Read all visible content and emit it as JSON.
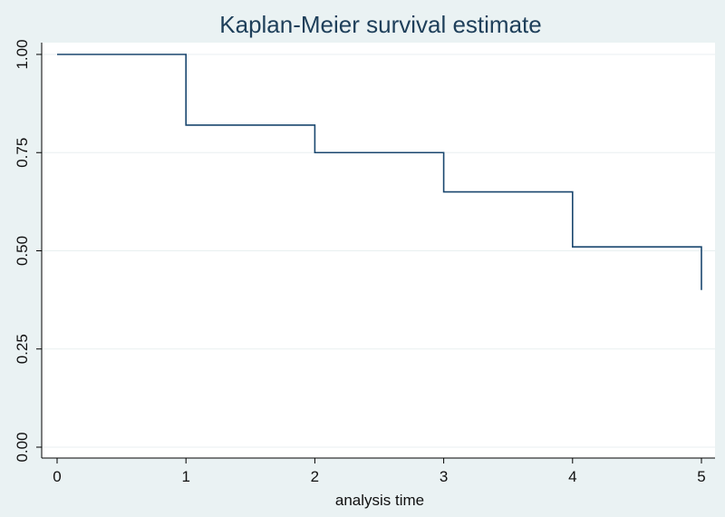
{
  "chart_data": {
    "type": "line",
    "step": true,
    "title": "Kaplan-Meier survival estimate",
    "xlabel": "analysis time",
    "ylabel": "",
    "xlim": [
      0,
      5
    ],
    "ylim": [
      0,
      1
    ],
    "x_ticks": [
      0,
      1,
      2,
      3,
      4,
      5
    ],
    "x_tick_labels": [
      "0",
      "1",
      "2",
      "3",
      "4",
      "5"
    ],
    "y_ticks": [
      0,
      0.25,
      0.5,
      0.75,
      1
    ],
    "y_tick_labels": [
      "0.00",
      "0.25",
      "0.50",
      "0.75",
      "1.00"
    ],
    "grid": true,
    "series": [
      {
        "x": [
          0,
          1,
          2,
          3,
          4,
          5
        ],
        "y": [
          1.0,
          0.82,
          0.75,
          0.65,
          0.51,
          0.4
        ]
      }
    ],
    "colors": {
      "background": "#eaf2f3",
      "plot_area": "#ffffff",
      "line": "#1a476f",
      "grid": "#e8eff0",
      "title": "#1e3f5a"
    }
  }
}
